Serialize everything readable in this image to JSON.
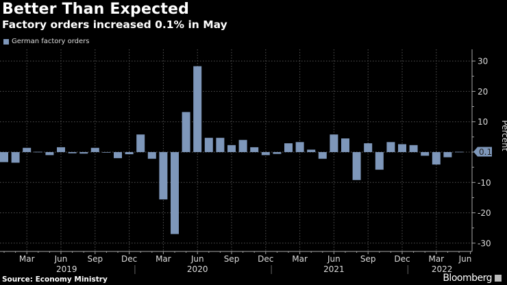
{
  "title": "Better Than Expected",
  "subtitle": "Factory orders increased 0.1% in May",
  "source": "Source: Economy Ministry",
  "brand": "Bloomberg",
  "chart_data": {
    "type": "bar",
    "title": "Better Than Expected",
    "subtitle": "Factory orders increased 0.1% in May",
    "ylabel": "Percent",
    "ylim": [
      -33,
      33
    ],
    "yticks": [
      30,
      20,
      10,
      0,
      -10,
      -20,
      -30
    ],
    "ytick_labels": [
      "30",
      "20",
      "10",
      "0",
      "-10",
      "-20",
      "-30"
    ],
    "grid": true,
    "legend": {
      "placement": "top-left",
      "entries": [
        "German factory orders"
      ]
    },
    "color": "#7e97ba",
    "last_value_label": "0.1",
    "categories": [
      "Jan 2019",
      "Feb 2019",
      "Mar 2019",
      "Apr 2019",
      "May 2019",
      "Jun 2019",
      "Jul 2019",
      "Aug 2019",
      "Sep 2019",
      "Oct 2019",
      "Nov 2019",
      "Dec 2019",
      "Jan 2020",
      "Feb 2020",
      "Mar 2020",
      "Apr 2020",
      "May 2020",
      "Jun 2020",
      "Jul 2020",
      "Aug 2020",
      "Sep 2020",
      "Oct 2020",
      "Nov 2020",
      "Dec 2020",
      "Jan 2021",
      "Feb 2021",
      "Mar 2021",
      "Apr 2021",
      "May 2021",
      "Jun 2021",
      "Jul 2021",
      "Aug 2021",
      "Sep 2021",
      "Oct 2021",
      "Nov 2021",
      "Dec 2021",
      "Jan 2022",
      "Feb 2022",
      "Mar 2022",
      "Apr 2022",
      "May 2022"
    ],
    "series": [
      {
        "name": "German factory orders",
        "values": [
          -3.3,
          -3.5,
          1.4,
          0.1,
          -1.0,
          1.6,
          -0.4,
          -0.5,
          1.4,
          -0.1,
          -2.0,
          -0.7,
          5.8,
          -2.2,
          -15.6,
          -27.0,
          13.2,
          28.3,
          4.7,
          4.7,
          2.3,
          4.0,
          1.6,
          -1.0,
          -0.6,
          2.9,
          3.3,
          0.8,
          -2.2,
          5.8,
          4.5,
          -9.2,
          2.9,
          -5.8,
          3.3,
          2.6,
          2.3,
          -1.2,
          -4.1,
          -1.7,
          0.1
        ]
      }
    ],
    "xtick_labels": [
      {
        "label": "Mar",
        "index": 2
      },
      {
        "label": "Jun",
        "index": 5
      },
      {
        "label": "Sep",
        "index": 8
      },
      {
        "label": "Dec",
        "index": 11
      },
      {
        "label": "Mar",
        "index": 14
      },
      {
        "label": "Jun",
        "index": 17
      },
      {
        "label": "Sep",
        "index": 20
      },
      {
        "label": "Dec",
        "index": 23
      },
      {
        "label": "Mar",
        "index": 26
      },
      {
        "label": "Jun",
        "index": 29
      },
      {
        "label": "Sep",
        "index": 32
      },
      {
        "label": "Dec",
        "index": 35
      },
      {
        "label": "Mar",
        "index": 38
      },
      {
        "label": "Jun",
        "index": 41
      }
    ],
    "year_labels": [
      {
        "label": "2019",
        "index": 5.5
      },
      {
        "label": "2020",
        "index": 17
      },
      {
        "label": "2021",
        "index": 29
      },
      {
        "label": "2022",
        "index": 38.5
      }
    ]
  }
}
